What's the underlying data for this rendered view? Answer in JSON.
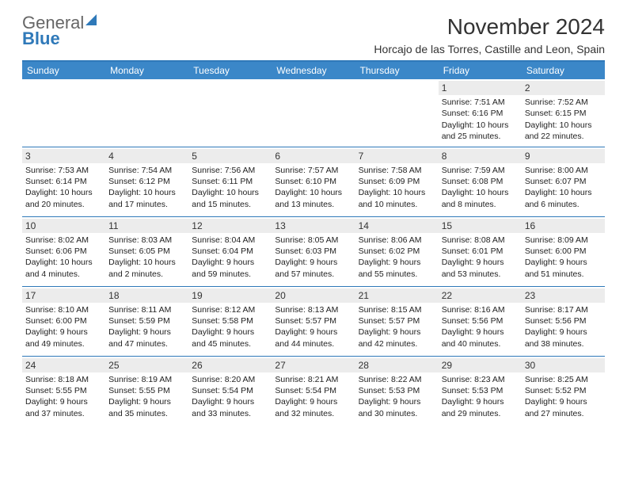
{
  "logo": {
    "top": "General",
    "bottom": "Blue"
  },
  "title": "November 2024",
  "subtitle": "Horcajo de las Torres, Castille and Leon, Spain",
  "day_headers": [
    "Sunday",
    "Monday",
    "Tuesday",
    "Wednesday",
    "Thursday",
    "Friday",
    "Saturday"
  ],
  "weeks": [
    [
      null,
      null,
      null,
      null,
      null,
      {
        "n": "1",
        "sr": "7:51 AM",
        "ss": "6:16 PM",
        "dl": "10 hours and 25 minutes."
      },
      {
        "n": "2",
        "sr": "7:52 AM",
        "ss": "6:15 PM",
        "dl": "10 hours and 22 minutes."
      }
    ],
    [
      {
        "n": "3",
        "sr": "7:53 AM",
        "ss": "6:14 PM",
        "dl": "10 hours and 20 minutes."
      },
      {
        "n": "4",
        "sr": "7:54 AM",
        "ss": "6:12 PM",
        "dl": "10 hours and 17 minutes."
      },
      {
        "n": "5",
        "sr": "7:56 AM",
        "ss": "6:11 PM",
        "dl": "10 hours and 15 minutes."
      },
      {
        "n": "6",
        "sr": "7:57 AM",
        "ss": "6:10 PM",
        "dl": "10 hours and 13 minutes."
      },
      {
        "n": "7",
        "sr": "7:58 AM",
        "ss": "6:09 PM",
        "dl": "10 hours and 10 minutes."
      },
      {
        "n": "8",
        "sr": "7:59 AM",
        "ss": "6:08 PM",
        "dl": "10 hours and 8 minutes."
      },
      {
        "n": "9",
        "sr": "8:00 AM",
        "ss": "6:07 PM",
        "dl": "10 hours and 6 minutes."
      }
    ],
    [
      {
        "n": "10",
        "sr": "8:02 AM",
        "ss": "6:06 PM",
        "dl": "10 hours and 4 minutes."
      },
      {
        "n": "11",
        "sr": "8:03 AM",
        "ss": "6:05 PM",
        "dl": "10 hours and 2 minutes."
      },
      {
        "n": "12",
        "sr": "8:04 AM",
        "ss": "6:04 PM",
        "dl": "9 hours and 59 minutes."
      },
      {
        "n": "13",
        "sr": "8:05 AM",
        "ss": "6:03 PM",
        "dl": "9 hours and 57 minutes."
      },
      {
        "n": "14",
        "sr": "8:06 AM",
        "ss": "6:02 PM",
        "dl": "9 hours and 55 minutes."
      },
      {
        "n": "15",
        "sr": "8:08 AM",
        "ss": "6:01 PM",
        "dl": "9 hours and 53 minutes."
      },
      {
        "n": "16",
        "sr": "8:09 AM",
        "ss": "6:00 PM",
        "dl": "9 hours and 51 minutes."
      }
    ],
    [
      {
        "n": "17",
        "sr": "8:10 AM",
        "ss": "6:00 PM",
        "dl": "9 hours and 49 minutes."
      },
      {
        "n": "18",
        "sr": "8:11 AM",
        "ss": "5:59 PM",
        "dl": "9 hours and 47 minutes."
      },
      {
        "n": "19",
        "sr": "8:12 AM",
        "ss": "5:58 PM",
        "dl": "9 hours and 45 minutes."
      },
      {
        "n": "20",
        "sr": "8:13 AM",
        "ss": "5:57 PM",
        "dl": "9 hours and 44 minutes."
      },
      {
        "n": "21",
        "sr": "8:15 AM",
        "ss": "5:57 PM",
        "dl": "9 hours and 42 minutes."
      },
      {
        "n": "22",
        "sr": "8:16 AM",
        "ss": "5:56 PM",
        "dl": "9 hours and 40 minutes."
      },
      {
        "n": "23",
        "sr": "8:17 AM",
        "ss": "5:56 PM",
        "dl": "9 hours and 38 minutes."
      }
    ],
    [
      {
        "n": "24",
        "sr": "8:18 AM",
        "ss": "5:55 PM",
        "dl": "9 hours and 37 minutes."
      },
      {
        "n": "25",
        "sr": "8:19 AM",
        "ss": "5:55 PM",
        "dl": "9 hours and 35 minutes."
      },
      {
        "n": "26",
        "sr": "8:20 AM",
        "ss": "5:54 PM",
        "dl": "9 hours and 33 minutes."
      },
      {
        "n": "27",
        "sr": "8:21 AM",
        "ss": "5:54 PM",
        "dl": "9 hours and 32 minutes."
      },
      {
        "n": "28",
        "sr": "8:22 AM",
        "ss": "5:53 PM",
        "dl": "9 hours and 30 minutes."
      },
      {
        "n": "29",
        "sr": "8:23 AM",
        "ss": "5:53 PM",
        "dl": "9 hours and 29 minutes."
      },
      {
        "n": "30",
        "sr": "8:25 AM",
        "ss": "5:52 PM",
        "dl": "9 hours and 27 minutes."
      }
    ]
  ],
  "labels": {
    "sunrise": "Sunrise:",
    "sunset": "Sunset:",
    "daylight": "Daylight:"
  },
  "colors": {
    "accent": "#3b87c8",
    "rule": "#2f79b9",
    "daybg": "#ececec"
  }
}
